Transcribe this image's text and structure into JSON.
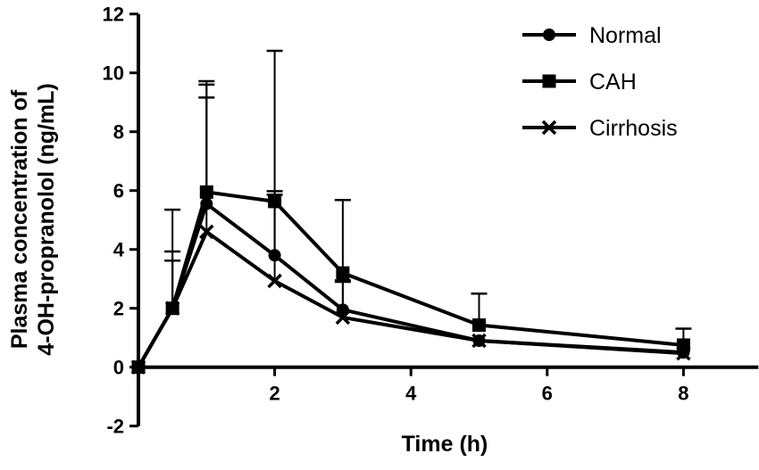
{
  "chart_data": {
    "type": "line",
    "title": "",
    "xlabel": "Time (h)",
    "ylabel_lines": [
      "Plasma concentration of",
      "4-OH-propranolol (ng/mL)"
    ],
    "xlim": [
      0,
      9.1
    ],
    "ylim": [
      -2,
      12
    ],
    "xticks": [
      2,
      4,
      6,
      8
    ],
    "yticks": [
      -2,
      0,
      2,
      4,
      6,
      8,
      10,
      12
    ],
    "grid": false,
    "legend_position": "top-right",
    "x": [
      0,
      0.5,
      1,
      2,
      3,
      5,
      8
    ],
    "series": [
      {
        "name": "Normal",
        "marker": "circle",
        "values": [
          0,
          2.0,
          5.55,
          3.8,
          1.95,
          0.9,
          0.5
        ],
        "error_upper": [
          null,
          3.93,
          9.6,
          5.98,
          2.95,
          null,
          null
        ]
      },
      {
        "name": "CAH",
        "marker": "square",
        "values": [
          0,
          2.0,
          5.95,
          5.63,
          3.2,
          1.43,
          0.75
        ],
        "error_upper": [
          null,
          5.35,
          9.72,
          10.75,
          5.68,
          2.5,
          1.31
        ]
      },
      {
        "name": "Cirrhosis",
        "marker": "x",
        "values": [
          0,
          2.0,
          4.6,
          2.93,
          1.69,
          0.9,
          0.47
        ],
        "error_upper": [
          null,
          3.62,
          9.16,
          5.86,
          2.9,
          null,
          null
        ]
      }
    ],
    "colors": {
      "line": "#000000"
    }
  }
}
